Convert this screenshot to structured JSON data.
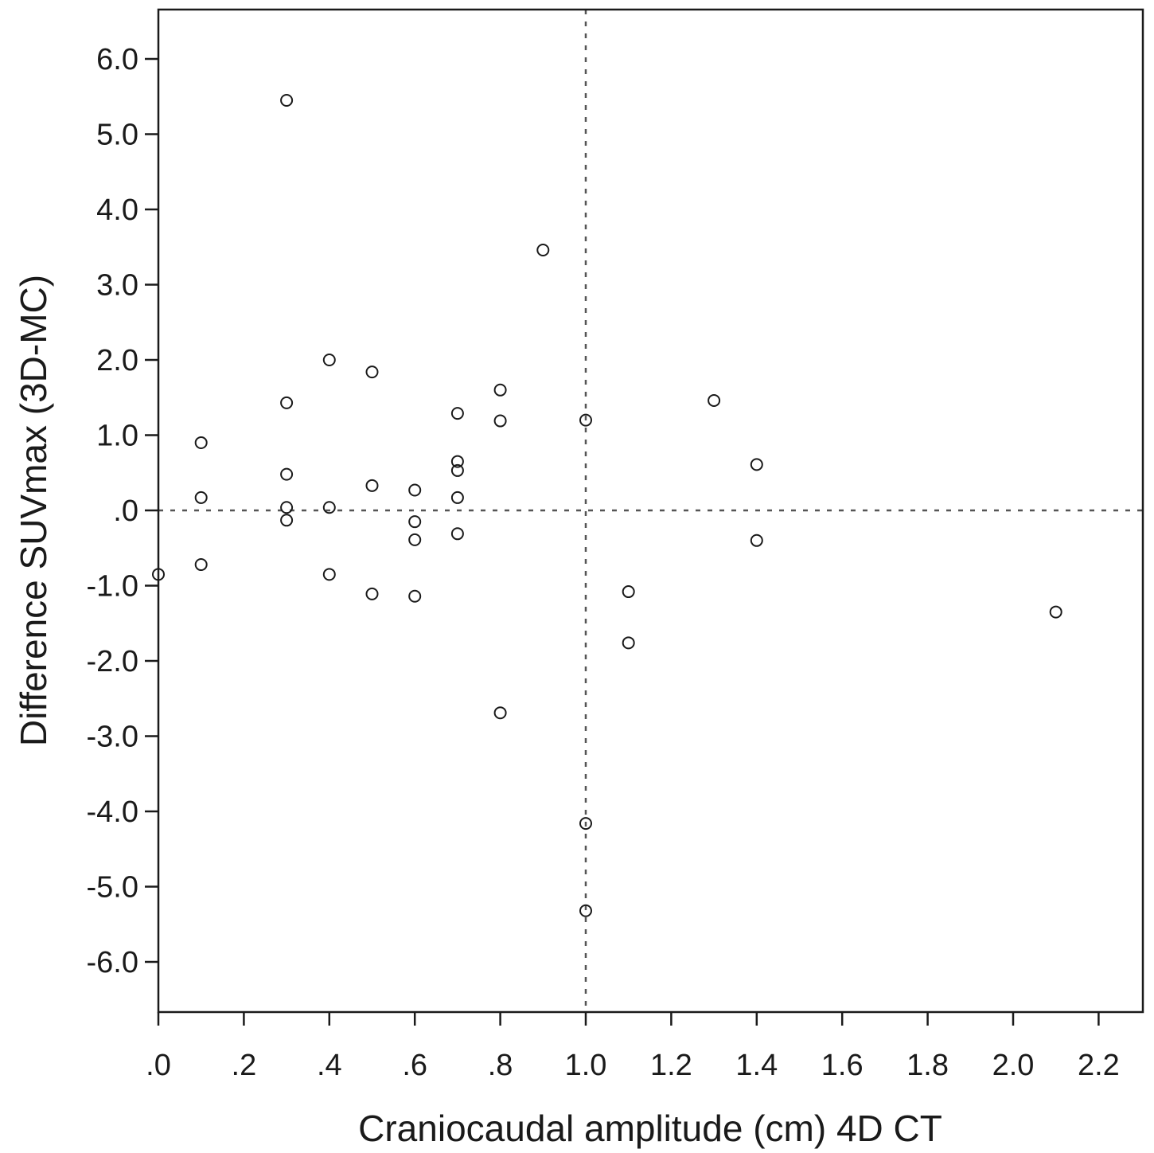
{
  "chart_data": {
    "type": "scatter",
    "xlabel": "Craniocaudal amplitude (cm) 4D CT",
    "ylabel": "Difference SUVmax (3D-MC)",
    "xlim": [
      0.0,
      2.35
    ],
    "ylim": [
      -6.65,
      6.65
    ],
    "xticks": [
      {
        "value": 0.0,
        "label": ".0"
      },
      {
        "value": 0.2,
        "label": ".2"
      },
      {
        "value": 0.4,
        "label": ".4"
      },
      {
        "value": 0.6,
        "label": ".6"
      },
      {
        "value": 0.8,
        "label": ".8"
      },
      {
        "value": 1.0,
        "label": "1.0"
      },
      {
        "value": 1.2,
        "label": "1.2"
      },
      {
        "value": 1.4,
        "label": "1.4"
      },
      {
        "value": 1.6,
        "label": "1.6"
      },
      {
        "value": 1.8,
        "label": "1.8"
      },
      {
        "value": 2.0,
        "label": "2.0"
      },
      {
        "value": 2.2,
        "label": "2.2"
      }
    ],
    "yticks": [
      {
        "value": 6.0,
        "label": "6.0"
      },
      {
        "value": 5.0,
        "label": "5.0"
      },
      {
        "value": 4.0,
        "label": "4.0"
      },
      {
        "value": 3.0,
        "label": "3.0"
      },
      {
        "value": 2.0,
        "label": "2.0"
      },
      {
        "value": 1.0,
        "label": "1.0"
      },
      {
        "value": 0.0,
        "label": ".0"
      },
      {
        "value": -1.0,
        "label": "-1.0"
      },
      {
        "value": -2.0,
        "label": "-2.0"
      },
      {
        "value": -3.0,
        "label": "-3.0"
      },
      {
        "value": -4.0,
        "label": "-4.0"
      },
      {
        "value": -5.0,
        "label": "-5.0"
      },
      {
        "value": -6.0,
        "label": "-6.0"
      }
    ],
    "reference_lines": {
      "x": 1.0,
      "y": 0.0,
      "style": "dotted"
    },
    "grid": false,
    "marker": "open-circle",
    "points": [
      {
        "x": 0.0,
        "y": -0.85
      },
      {
        "x": 0.1,
        "y": 0.9
      },
      {
        "x": 0.1,
        "y": 0.17
      },
      {
        "x": 0.1,
        "y": -0.72
      },
      {
        "x": 0.3,
        "y": 5.45
      },
      {
        "x": 0.3,
        "y": 1.43
      },
      {
        "x": 0.3,
        "y": 0.48
      },
      {
        "x": 0.3,
        "y": 0.04
      },
      {
        "x": 0.3,
        "y": -0.13
      },
      {
        "x": 0.4,
        "y": 2.0
      },
      {
        "x": 0.4,
        "y": 0.04
      },
      {
        "x": 0.4,
        "y": -0.85
      },
      {
        "x": 0.5,
        "y": 1.84
      },
      {
        "x": 0.5,
        "y": 0.33
      },
      {
        "x": 0.5,
        "y": -1.11
      },
      {
        "x": 0.6,
        "y": 0.27
      },
      {
        "x": 0.6,
        "y": -0.15
      },
      {
        "x": 0.6,
        "y": -0.39
      },
      {
        "x": 0.6,
        "y": -1.14
      },
      {
        "x": 0.7,
        "y": 1.29
      },
      {
        "x": 0.7,
        "y": 0.65
      },
      {
        "x": 0.7,
        "y": 0.53
      },
      {
        "x": 0.7,
        "y": 0.17
      },
      {
        "x": 0.7,
        "y": -0.31
      },
      {
        "x": 0.8,
        "y": 1.6
      },
      {
        "x": 0.8,
        "y": 1.19
      },
      {
        "x": 0.8,
        "y": -2.69
      },
      {
        "x": 0.9,
        "y": 3.46
      },
      {
        "x": 1.0,
        "y": 1.2
      },
      {
        "x": 1.0,
        "y": -4.16
      },
      {
        "x": 1.0,
        "y": -5.32
      },
      {
        "x": 1.1,
        "y": -1.08
      },
      {
        "x": 1.1,
        "y": -1.76
      },
      {
        "x": 1.3,
        "y": 1.46
      },
      {
        "x": 1.4,
        "y": 0.61
      },
      {
        "x": 1.4,
        "y": -0.4
      },
      {
        "x": 2.1,
        "y": -1.35
      }
    ]
  }
}
